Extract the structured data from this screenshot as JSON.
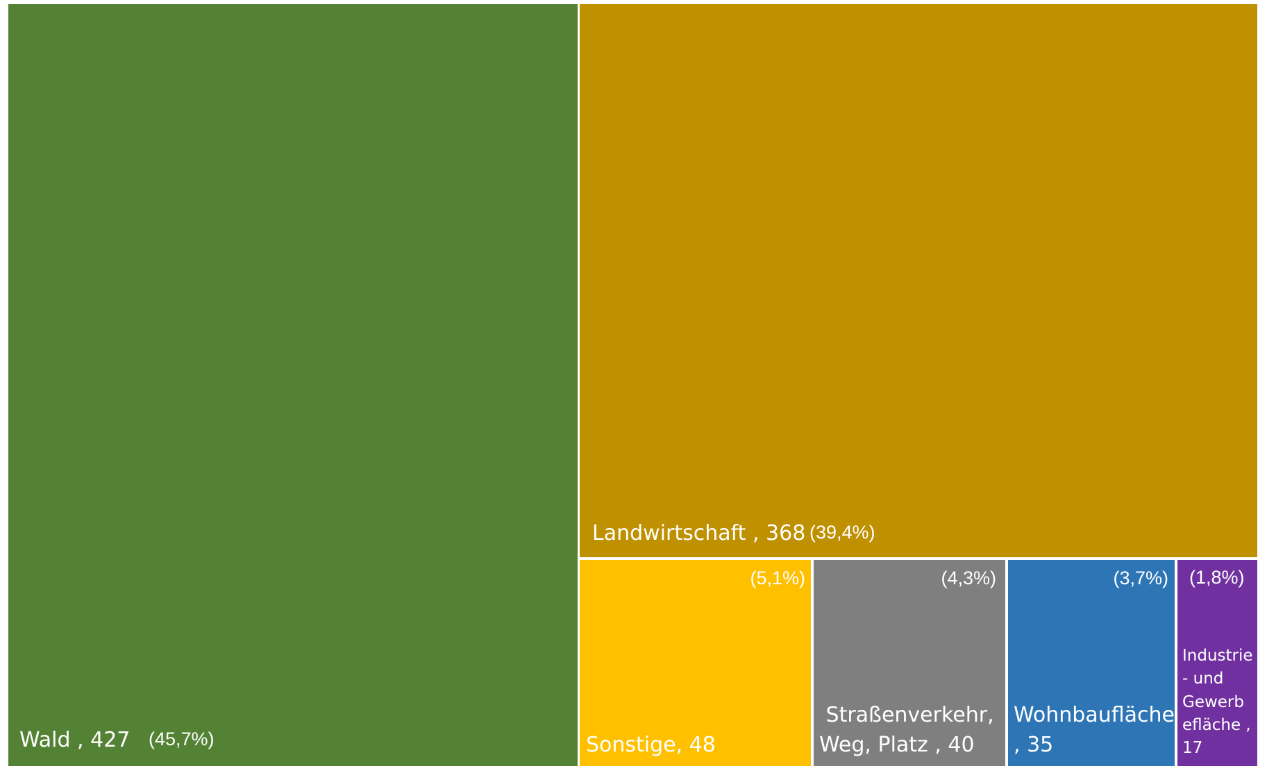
{
  "chart_data": {
    "type": "treemap",
    "items": [
      {
        "name": "Wald",
        "value": 427,
        "percent": "(45,7%)",
        "color": "#548235",
        "label": "Wald , 427"
      },
      {
        "name": "Landwirtschaft",
        "value": 368,
        "percent": "(39,4%)",
        "color": "#BF9000",
        "label": "Landwirtschaft , 368"
      },
      {
        "name": "Sonstige",
        "value": 48,
        "percent": "(5,1%)",
        "color": "#FFC000",
        "label": "Sonstige, 48"
      },
      {
        "name": "Straßenverkehr, Weg, Platz",
        "value": 40,
        "percent": "(4,3%)",
        "color": "#7F7F7F",
        "label_lines": [
          " Straßenverkehr,",
          "Weg, Platz , 40"
        ]
      },
      {
        "name": "Wohnbaufläche",
        "value": 35,
        "percent": "(3,7%)",
        "color": "#2E75B6",
        "label_lines": [
          "Wohnbaufläche",
          ", 35"
        ]
      },
      {
        "name": "Industrie- und Gewerbefläche",
        "value": 17,
        "percent": "(1,8%)",
        "color": "#7030A0",
        "label_lines": [
          "Industrie",
          "- und",
          "Gewerb",
          "efläche ,",
          "17"
        ]
      }
    ]
  }
}
